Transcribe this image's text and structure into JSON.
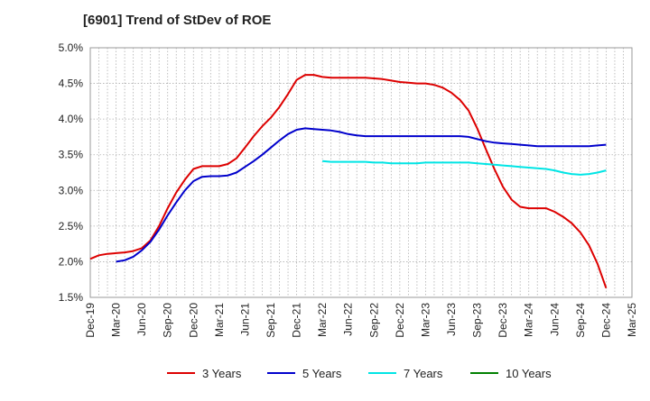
{
  "chart_data": {
    "type": "line",
    "title": "[6901]  Trend of StDev of ROE",
    "xlabel": "",
    "ylabel": "",
    "y_unit": "%",
    "ylim": [
      1.5,
      5.0
    ],
    "y_ticks": [
      "1.5%",
      "2.0%",
      "2.5%",
      "3.0%",
      "3.5%",
      "4.0%",
      "4.5%",
      "5.0%"
    ],
    "x_ticks": [
      "Dec-19",
      "Mar-20",
      "Jun-20",
      "Sep-20",
      "Dec-20",
      "Mar-21",
      "Jun-21",
      "Sep-21",
      "Dec-21",
      "Mar-22",
      "Jun-22",
      "Sep-22",
      "Dec-22",
      "Mar-23",
      "Jun-23",
      "Sep-23",
      "Dec-23",
      "Mar-24",
      "Jun-24",
      "Sep-24",
      "Dec-24",
      "Mar-25"
    ],
    "grid": true,
    "legend_position": "bottom",
    "series": [
      {
        "name": "3 Years",
        "color": "#dd0000",
        "points": [
          [
            "Dec-19",
            2.04
          ],
          [
            "Jan-20",
            2.09
          ],
          [
            "Feb-20",
            2.11
          ],
          [
            "Mar-20",
            2.12
          ],
          [
            "Apr-20",
            2.13
          ],
          [
            "May-20",
            2.15
          ],
          [
            "Jun-20",
            2.19
          ],
          [
            "Jul-20",
            2.3
          ],
          [
            "Aug-20",
            2.5
          ],
          [
            "Sep-20",
            2.75
          ],
          [
            "Oct-20",
            2.97
          ],
          [
            "Nov-20",
            3.15
          ],
          [
            "Dec-20",
            3.3
          ],
          [
            "Jan-21",
            3.34
          ],
          [
            "Feb-21",
            3.34
          ],
          [
            "Mar-21",
            3.34
          ],
          [
            "Apr-21",
            3.37
          ],
          [
            "May-21",
            3.45
          ],
          [
            "Jun-21",
            3.6
          ],
          [
            "Jul-21",
            3.76
          ],
          [
            "Aug-21",
            3.9
          ],
          [
            "Sep-21",
            4.02
          ],
          [
            "Oct-21",
            4.17
          ],
          [
            "Nov-21",
            4.35
          ],
          [
            "Dec-21",
            4.55
          ],
          [
            "Jan-22",
            4.62
          ],
          [
            "Feb-22",
            4.62
          ],
          [
            "Mar-22",
            4.59
          ],
          [
            "Apr-22",
            4.58
          ],
          [
            "May-22",
            4.58
          ],
          [
            "Jun-22",
            4.58
          ],
          [
            "Jul-22",
            4.58
          ],
          [
            "Aug-22",
            4.58
          ],
          [
            "Sep-22",
            4.57
          ],
          [
            "Oct-22",
            4.56
          ],
          [
            "Nov-22",
            4.54
          ],
          [
            "Dec-22",
            4.52
          ],
          [
            "Jan-23",
            4.51
          ],
          [
            "Feb-23",
            4.5
          ],
          [
            "Mar-23",
            4.5
          ],
          [
            "Apr-23",
            4.48
          ],
          [
            "May-23",
            4.44
          ],
          [
            "Jun-23",
            4.37
          ],
          [
            "Jul-23",
            4.27
          ],
          [
            "Aug-23",
            4.12
          ],
          [
            "Sep-23",
            3.87
          ],
          [
            "Oct-23",
            3.58
          ],
          [
            "Nov-23",
            3.3
          ],
          [
            "Dec-23",
            3.05
          ],
          [
            "Jan-24",
            2.87
          ],
          [
            "Feb-24",
            2.77
          ],
          [
            "Mar-24",
            2.75
          ],
          [
            "Apr-24",
            2.75
          ],
          [
            "May-24",
            2.75
          ],
          [
            "Jun-24",
            2.7
          ],
          [
            "Jul-24",
            2.63
          ],
          [
            "Aug-24",
            2.54
          ],
          [
            "Sep-24",
            2.41
          ],
          [
            "Oct-24",
            2.23
          ],
          [
            "Nov-24",
            1.97
          ],
          [
            "Dec-24",
            1.63
          ]
        ]
      },
      {
        "name": "5 Years",
        "color": "#0000cc",
        "points": [
          [
            "Mar-20",
            2.0
          ],
          [
            "Apr-20",
            2.02
          ],
          [
            "May-20",
            2.07
          ],
          [
            "Jun-20",
            2.16
          ],
          [
            "Jul-20",
            2.28
          ],
          [
            "Aug-20",
            2.45
          ],
          [
            "Sep-20",
            2.65
          ],
          [
            "Oct-20",
            2.83
          ],
          [
            "Nov-20",
            3.0
          ],
          [
            "Dec-20",
            3.13
          ],
          [
            "Jan-21",
            3.19
          ],
          [
            "Feb-21",
            3.2
          ],
          [
            "Mar-21",
            3.2
          ],
          [
            "Apr-21",
            3.21
          ],
          [
            "May-21",
            3.25
          ],
          [
            "Jun-21",
            3.33
          ],
          [
            "Jul-21",
            3.41
          ],
          [
            "Aug-21",
            3.5
          ],
          [
            "Sep-21",
            3.6
          ],
          [
            "Oct-21",
            3.7
          ],
          [
            "Nov-21",
            3.79
          ],
          [
            "Dec-21",
            3.85
          ],
          [
            "Jan-22",
            3.87
          ],
          [
            "Feb-22",
            3.86
          ],
          [
            "Mar-22",
            3.85
          ],
          [
            "Apr-22",
            3.84
          ],
          [
            "May-22",
            3.82
          ],
          [
            "Jun-22",
            3.79
          ],
          [
            "Jul-22",
            3.77
          ],
          [
            "Aug-22",
            3.76
          ],
          [
            "Sep-22",
            3.76
          ],
          [
            "Oct-22",
            3.76
          ],
          [
            "Nov-22",
            3.76
          ],
          [
            "Dec-22",
            3.76
          ],
          [
            "Jan-23",
            3.76
          ],
          [
            "Feb-23",
            3.76
          ],
          [
            "Mar-23",
            3.76
          ],
          [
            "Apr-23",
            3.76
          ],
          [
            "May-23",
            3.76
          ],
          [
            "Jun-23",
            3.76
          ],
          [
            "Jul-23",
            3.76
          ],
          [
            "Aug-23",
            3.75
          ],
          [
            "Sep-23",
            3.72
          ],
          [
            "Oct-23",
            3.69
          ],
          [
            "Nov-23",
            3.67
          ],
          [
            "Dec-23",
            3.66
          ],
          [
            "Jan-24",
            3.65
          ],
          [
            "Feb-24",
            3.64
          ],
          [
            "Mar-24",
            3.63
          ],
          [
            "Apr-24",
            3.62
          ],
          [
            "May-24",
            3.62
          ],
          [
            "Jun-24",
            3.62
          ],
          [
            "Jul-24",
            3.62
          ],
          [
            "Aug-24",
            3.62
          ],
          [
            "Sep-24",
            3.62
          ],
          [
            "Oct-24",
            3.62
          ],
          [
            "Nov-24",
            3.63
          ],
          [
            "Dec-24",
            3.64
          ]
        ]
      },
      {
        "name": "7 Years",
        "color": "#00e5e5",
        "points": [
          [
            "Mar-22",
            3.41
          ],
          [
            "Apr-22",
            3.4
          ],
          [
            "May-22",
            3.4
          ],
          [
            "Jun-22",
            3.4
          ],
          [
            "Jul-22",
            3.4
          ],
          [
            "Aug-22",
            3.4
          ],
          [
            "Sep-22",
            3.39
          ],
          [
            "Oct-22",
            3.39
          ],
          [
            "Nov-22",
            3.38
          ],
          [
            "Dec-22",
            3.38
          ],
          [
            "Jan-23",
            3.38
          ],
          [
            "Feb-23",
            3.38
          ],
          [
            "Mar-23",
            3.39
          ],
          [
            "Apr-23",
            3.39
          ],
          [
            "May-23",
            3.39
          ],
          [
            "Jun-23",
            3.39
          ],
          [
            "Jul-23",
            3.39
          ],
          [
            "Aug-23",
            3.39
          ],
          [
            "Sep-23",
            3.38
          ],
          [
            "Oct-23",
            3.37
          ],
          [
            "Nov-23",
            3.36
          ],
          [
            "Dec-23",
            3.35
          ],
          [
            "Jan-24",
            3.34
          ],
          [
            "Feb-24",
            3.33
          ],
          [
            "Mar-24",
            3.32
          ],
          [
            "Apr-24",
            3.31
          ],
          [
            "May-24",
            3.3
          ],
          [
            "Jun-24",
            3.28
          ],
          [
            "Jul-24",
            3.25
          ],
          [
            "Aug-24",
            3.23
          ],
          [
            "Sep-24",
            3.22
          ],
          [
            "Oct-24",
            3.23
          ],
          [
            "Nov-24",
            3.25
          ],
          [
            "Dec-24",
            3.28
          ]
        ]
      },
      {
        "name": "10 Years",
        "color": "#008000",
        "points": []
      }
    ]
  }
}
